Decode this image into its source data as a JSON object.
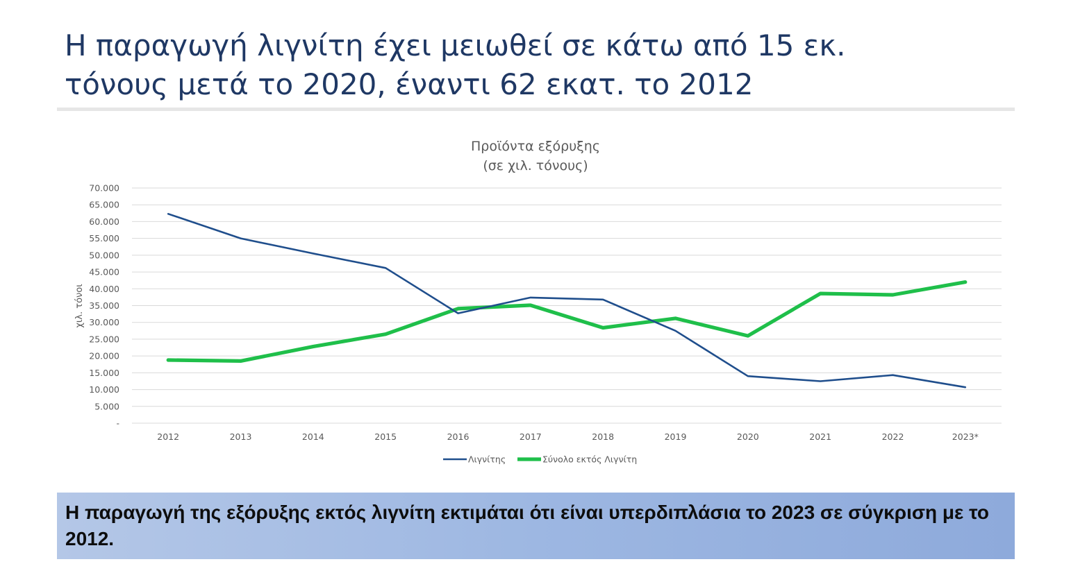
{
  "slide": {
    "title_line1": "Η παραγωγή λιγνίτη έχει μειωθεί σε κάτω από 15 εκ.",
    "title_line2": "τόνους μετά το 2020, έναντι 62 εκατ. το 2012",
    "footer_text": "Η παραγωγή της εξόρυξης εκτός λιγνίτη εκτιμάται ότι είναι υπερδιπλάσια  το 2023 σε σύγκριση με το 2012."
  },
  "chart_data": {
    "type": "line",
    "title": "Προϊόντα εξόρυξης",
    "subtitle": "(σε χιλ. τόνους)",
    "xlabel": "",
    "ylabel": "χιλ. τόνοι",
    "categories": [
      "2012",
      "2013",
      "2014",
      "2015",
      "2016",
      "2017",
      "2018",
      "2019",
      "2020",
      "2021",
      "2022",
      "2023*"
    ],
    "y_ticks": [
      "-",
      "5.000",
      "10.000",
      "15.000",
      "20.000",
      "25.000",
      "30.000",
      "35.000",
      "40.000",
      "45.000",
      "50.000",
      "55.000",
      "60.000",
      "65.000",
      "70.000"
    ],
    "ylim": [
      0,
      70000
    ],
    "grid": true,
    "legend_position": "bottom",
    "series": [
      {
        "name": "Λιγνίτης",
        "color": "#1f4e8c",
        "values": [
          62300,
          55000,
          50500,
          46200,
          32700,
          37400,
          36800,
          27500,
          14000,
          12500,
          14300,
          10700
        ]
      },
      {
        "name": "Σύνολο εκτός Λιγνίτη",
        "color": "#1fbf4a",
        "values": [
          18800,
          18500,
          22800,
          26500,
          34100,
          35100,
          28400,
          31200,
          26000,
          38600,
          38200,
          42000
        ]
      }
    ]
  }
}
